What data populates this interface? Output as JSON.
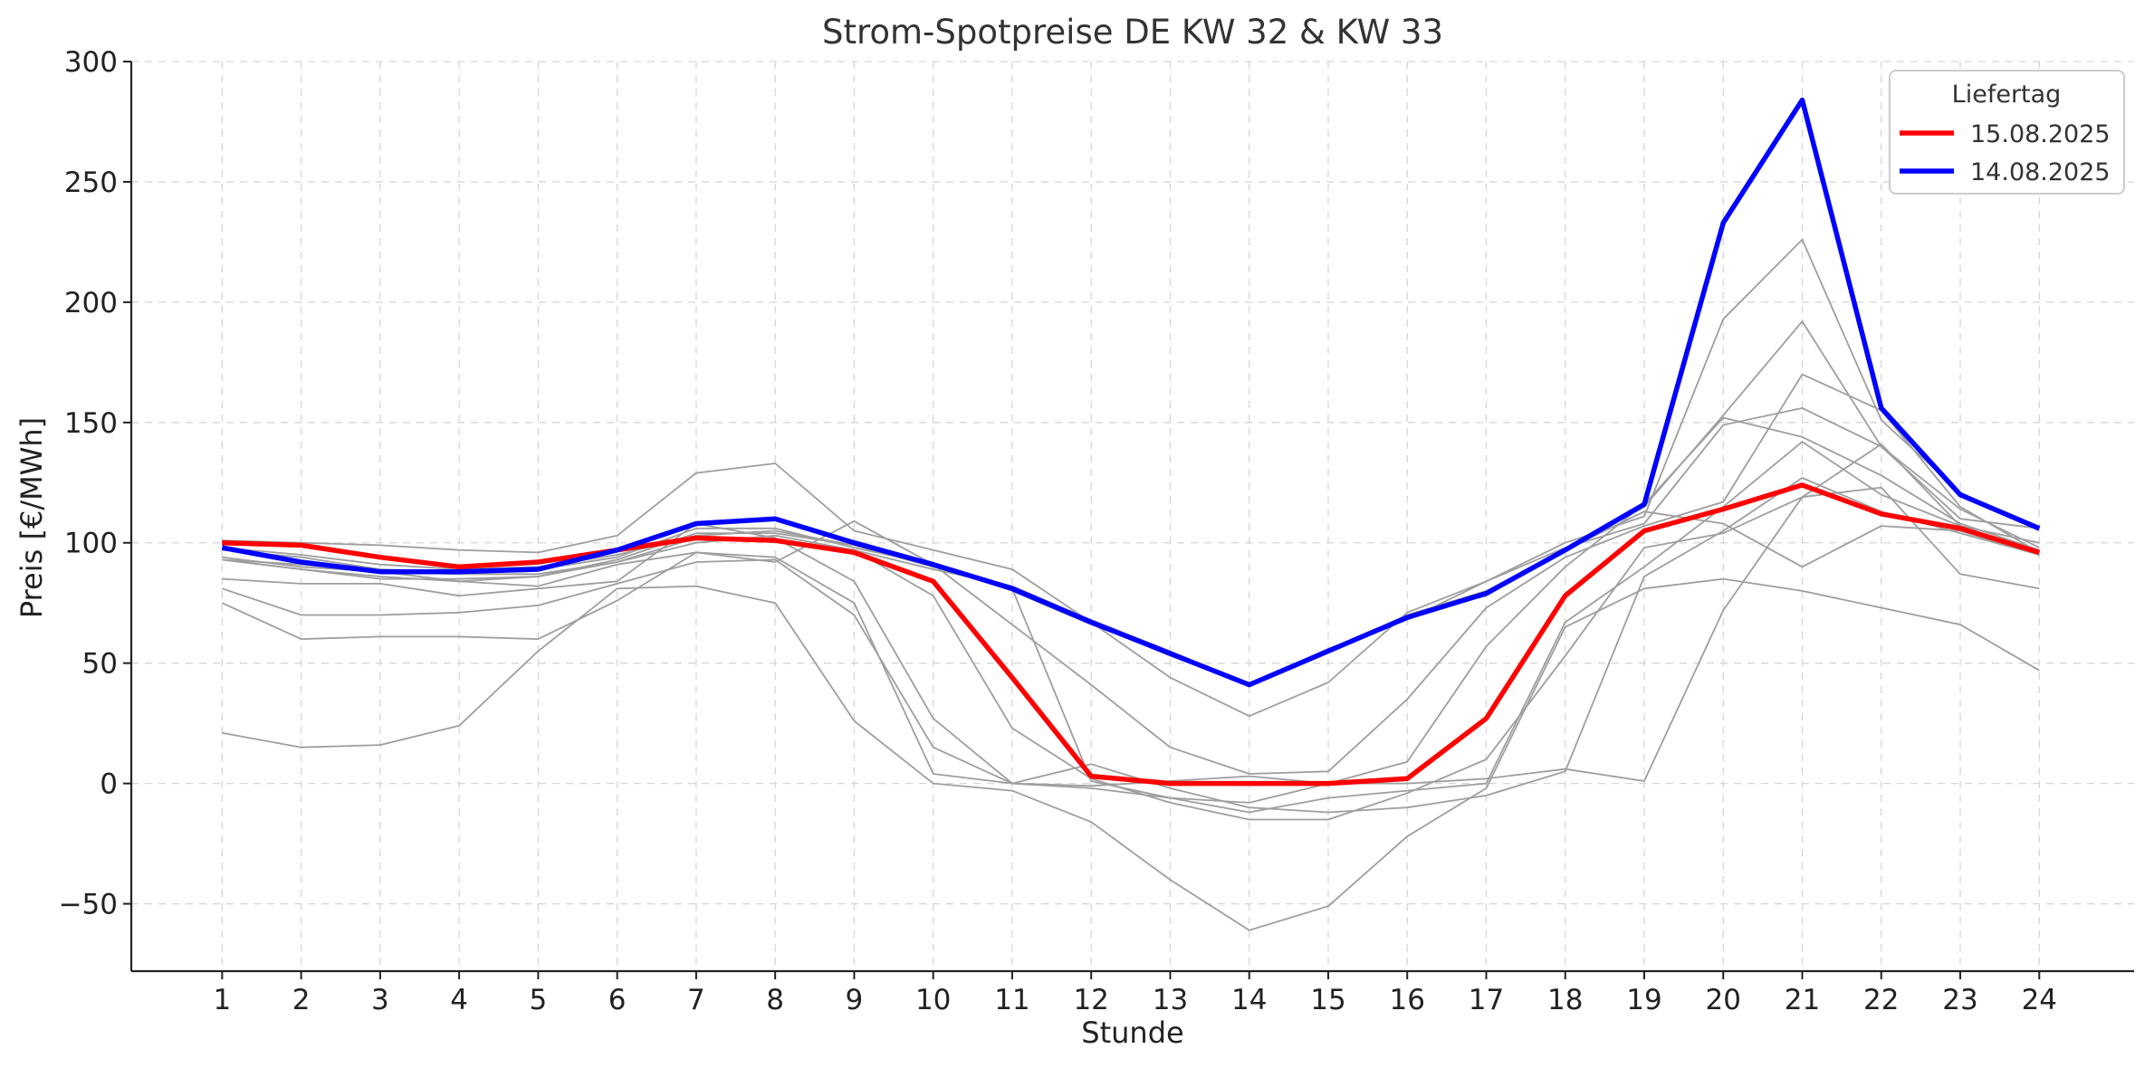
{
  "chart_data": {
    "type": "line",
    "title": "Strom-Spotpreise DE KW 32 & KW 33",
    "xlabel": "Stunde",
    "ylabel": "Preis [€/MWh]",
    "x": [
      1,
      2,
      3,
      4,
      5,
      6,
      7,
      8,
      9,
      10,
      11,
      12,
      13,
      14,
      15,
      16,
      17,
      18,
      19,
      20,
      21,
      22,
      23,
      24
    ],
    "xlim": [
      -0.15,
      25.2
    ],
    "ylim": [
      -78,
      300
    ],
    "yticks": [
      -50,
      0,
      50,
      100,
      150,
      200,
      250,
      300
    ],
    "grid": true,
    "legend": {
      "title": "Liefertag",
      "placement": "top-right"
    },
    "highlight_series": [
      {
        "name": "15.08.2025",
        "color": "#ff0000",
        "values": [
          100,
          99,
          94,
          90,
          92,
          97,
          102,
          101,
          96,
          84,
          44,
          3,
          0,
          0,
          0,
          2,
          27,
          78,
          105,
          114,
          124,
          112,
          106,
          96
        ]
      },
      {
        "name": "14.08.2025",
        "color": "#0000ff",
        "values": [
          98,
          92,
          88,
          88,
          89,
          97,
          108,
          110,
          100,
          91,
          81,
          67,
          54,
          41,
          55,
          69,
          79,
          97,
          116,
          233,
          284,
          156,
          120,
          106
        ]
      }
    ],
    "background_series_color": "#9e9e9e",
    "background_series": [
      {
        "values": [
          93,
          89,
          85,
          85,
          86,
          93,
          104,
          104,
          99,
          90,
          82,
          68,
          55,
          41,
          55,
          70,
          78,
          97,
          115,
          153,
          192,
          140,
          110,
          106
        ]
      },
      {
        "values": [
          97,
          94,
          89,
          88,
          89,
          94,
          106,
          106,
          98,
          91,
          80,
          66,
          54,
          41,
          56,
          68,
          84,
          100,
          111,
          193,
          226,
          151,
          121,
          105
        ]
      },
      {
        "values": [
          101,
          100,
          99,
          97,
          96,
          103,
          129,
          133,
          105,
          97,
          89,
          67,
          44,
          28,
          42,
          71,
          84,
          98,
          108,
          149,
          156,
          140,
          114,
          98
        ]
      },
      {
        "values": [
          93,
          91,
          88,
          84,
          82,
          91,
          96,
          92,
          109,
          91,
          66,
          41,
          15,
          4,
          5,
          35,
          73,
          94,
          107,
          117,
          170,
          155,
          115,
          96
        ]
      },
      {
        "values": [
          85,
          83,
          83,
          78,
          81,
          84,
          108,
          102,
          84,
          27,
          0,
          -1,
          1,
          3,
          0,
          9,
          57,
          90,
          116,
          152,
          144,
          128,
          108,
          97
        ]
      },
      {
        "values": [
          81,
          70,
          70,
          71,
          74,
          83,
          92,
          93,
          70,
          15,
          0,
          -2,
          -6,
          -12,
          -6,
          -3,
          0,
          67,
          90,
          115,
          142,
          120,
          107,
          100
        ]
      },
      {
        "values": [
          75,
          60,
          61,
          61,
          60,
          76,
          96,
          94,
          75,
          4,
          0,
          8,
          -2,
          -10,
          -12,
          -10,
          -5,
          5,
          86,
          105,
          127,
          113,
          104,
          95
        ]
      },
      {
        "values": [
          21,
          15,
          16,
          24,
          55,
          81,
          82,
          75,
          26,
          0,
          -3,
          -16,
          -40,
          -61,
          -51,
          -22,
          -2,
          65,
          81,
          85,
          80,
          73,
          66,
          47
        ]
      },
      {
        "values": [
          93,
          89,
          86,
          84,
          86,
          92,
          102,
          101,
          97,
          78,
          23,
          2,
          -8,
          -15,
          -15,
          -4,
          10,
          53,
          98,
          104,
          119,
          123,
          87,
          81
        ]
      },
      {
        "values": [
          94,
          90,
          88,
          87,
          87,
          92,
          100,
          103,
          97,
          89,
          82,
          67,
          53,
          41,
          55,
          70,
          80,
          97,
          113,
          108,
          90,
          107,
          105,
          95
        ]
      },
      {
        "values": [
          98,
          95,
          91,
          89,
          90,
          95,
          103,
          105,
          99,
          90,
          81,
          1,
          -6,
          -8,
          0,
          0,
          2,
          6,
          1,
          72,
          119,
          141,
          107,
          96
        ]
      }
    ]
  }
}
